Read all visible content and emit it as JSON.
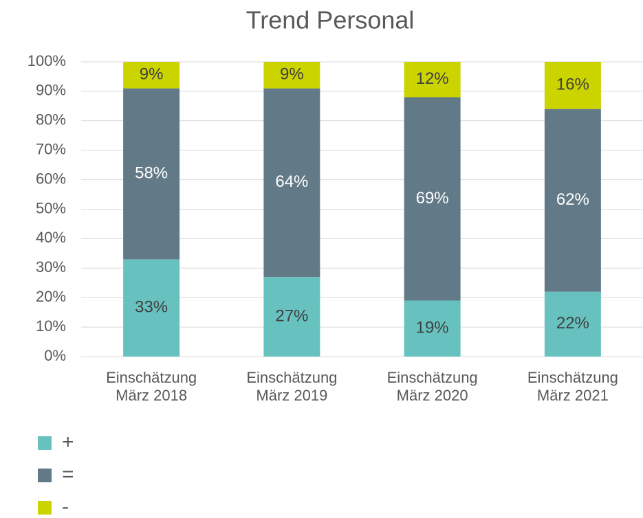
{
  "chart_data": {
    "type": "stacked_bar",
    "title": "Trend Personal",
    "categories": [
      "Einschätzung März 2018",
      "Einschätzung März 2019",
      "Einschätzung März 2020",
      "Einschätzung März 2021"
    ],
    "series": [
      {
        "name": "+",
        "color": "#67c2bf",
        "values": [
          33,
          27,
          19,
          22
        ],
        "value_labels": [
          "33%",
          "27%",
          "19%",
          "22%"
        ]
      },
      {
        "name": "=",
        "color": "#627a88",
        "values": [
          58,
          64,
          69,
          62
        ],
        "value_labels": [
          "58%",
          "64%",
          "69%",
          "62%"
        ]
      },
      {
        "name": "-",
        "color": "#ccd400",
        "values": [
          9,
          9,
          12,
          16
        ],
        "value_labels": [
          "9%",
          "9%",
          "12%",
          "16%"
        ]
      }
    ],
    "ylim": [
      0,
      100
    ],
    "yticks": [
      {
        "value": 0,
        "label": "0%"
      },
      {
        "value": 10,
        "label": "10%"
      },
      {
        "value": 20,
        "label": "20%"
      },
      {
        "value": 30,
        "label": "30%"
      },
      {
        "value": 40,
        "label": "40%"
      },
      {
        "value": 50,
        "label": "50%"
      },
      {
        "value": 60,
        "label": "60%"
      },
      {
        "value": 70,
        "label": "70%"
      },
      {
        "value": 80,
        "label": "80%"
      },
      {
        "value": 90,
        "label": "90%"
      },
      {
        "value": 100,
        "label": "100%"
      }
    ],
    "grid": true,
    "legend": "bottom-left"
  }
}
